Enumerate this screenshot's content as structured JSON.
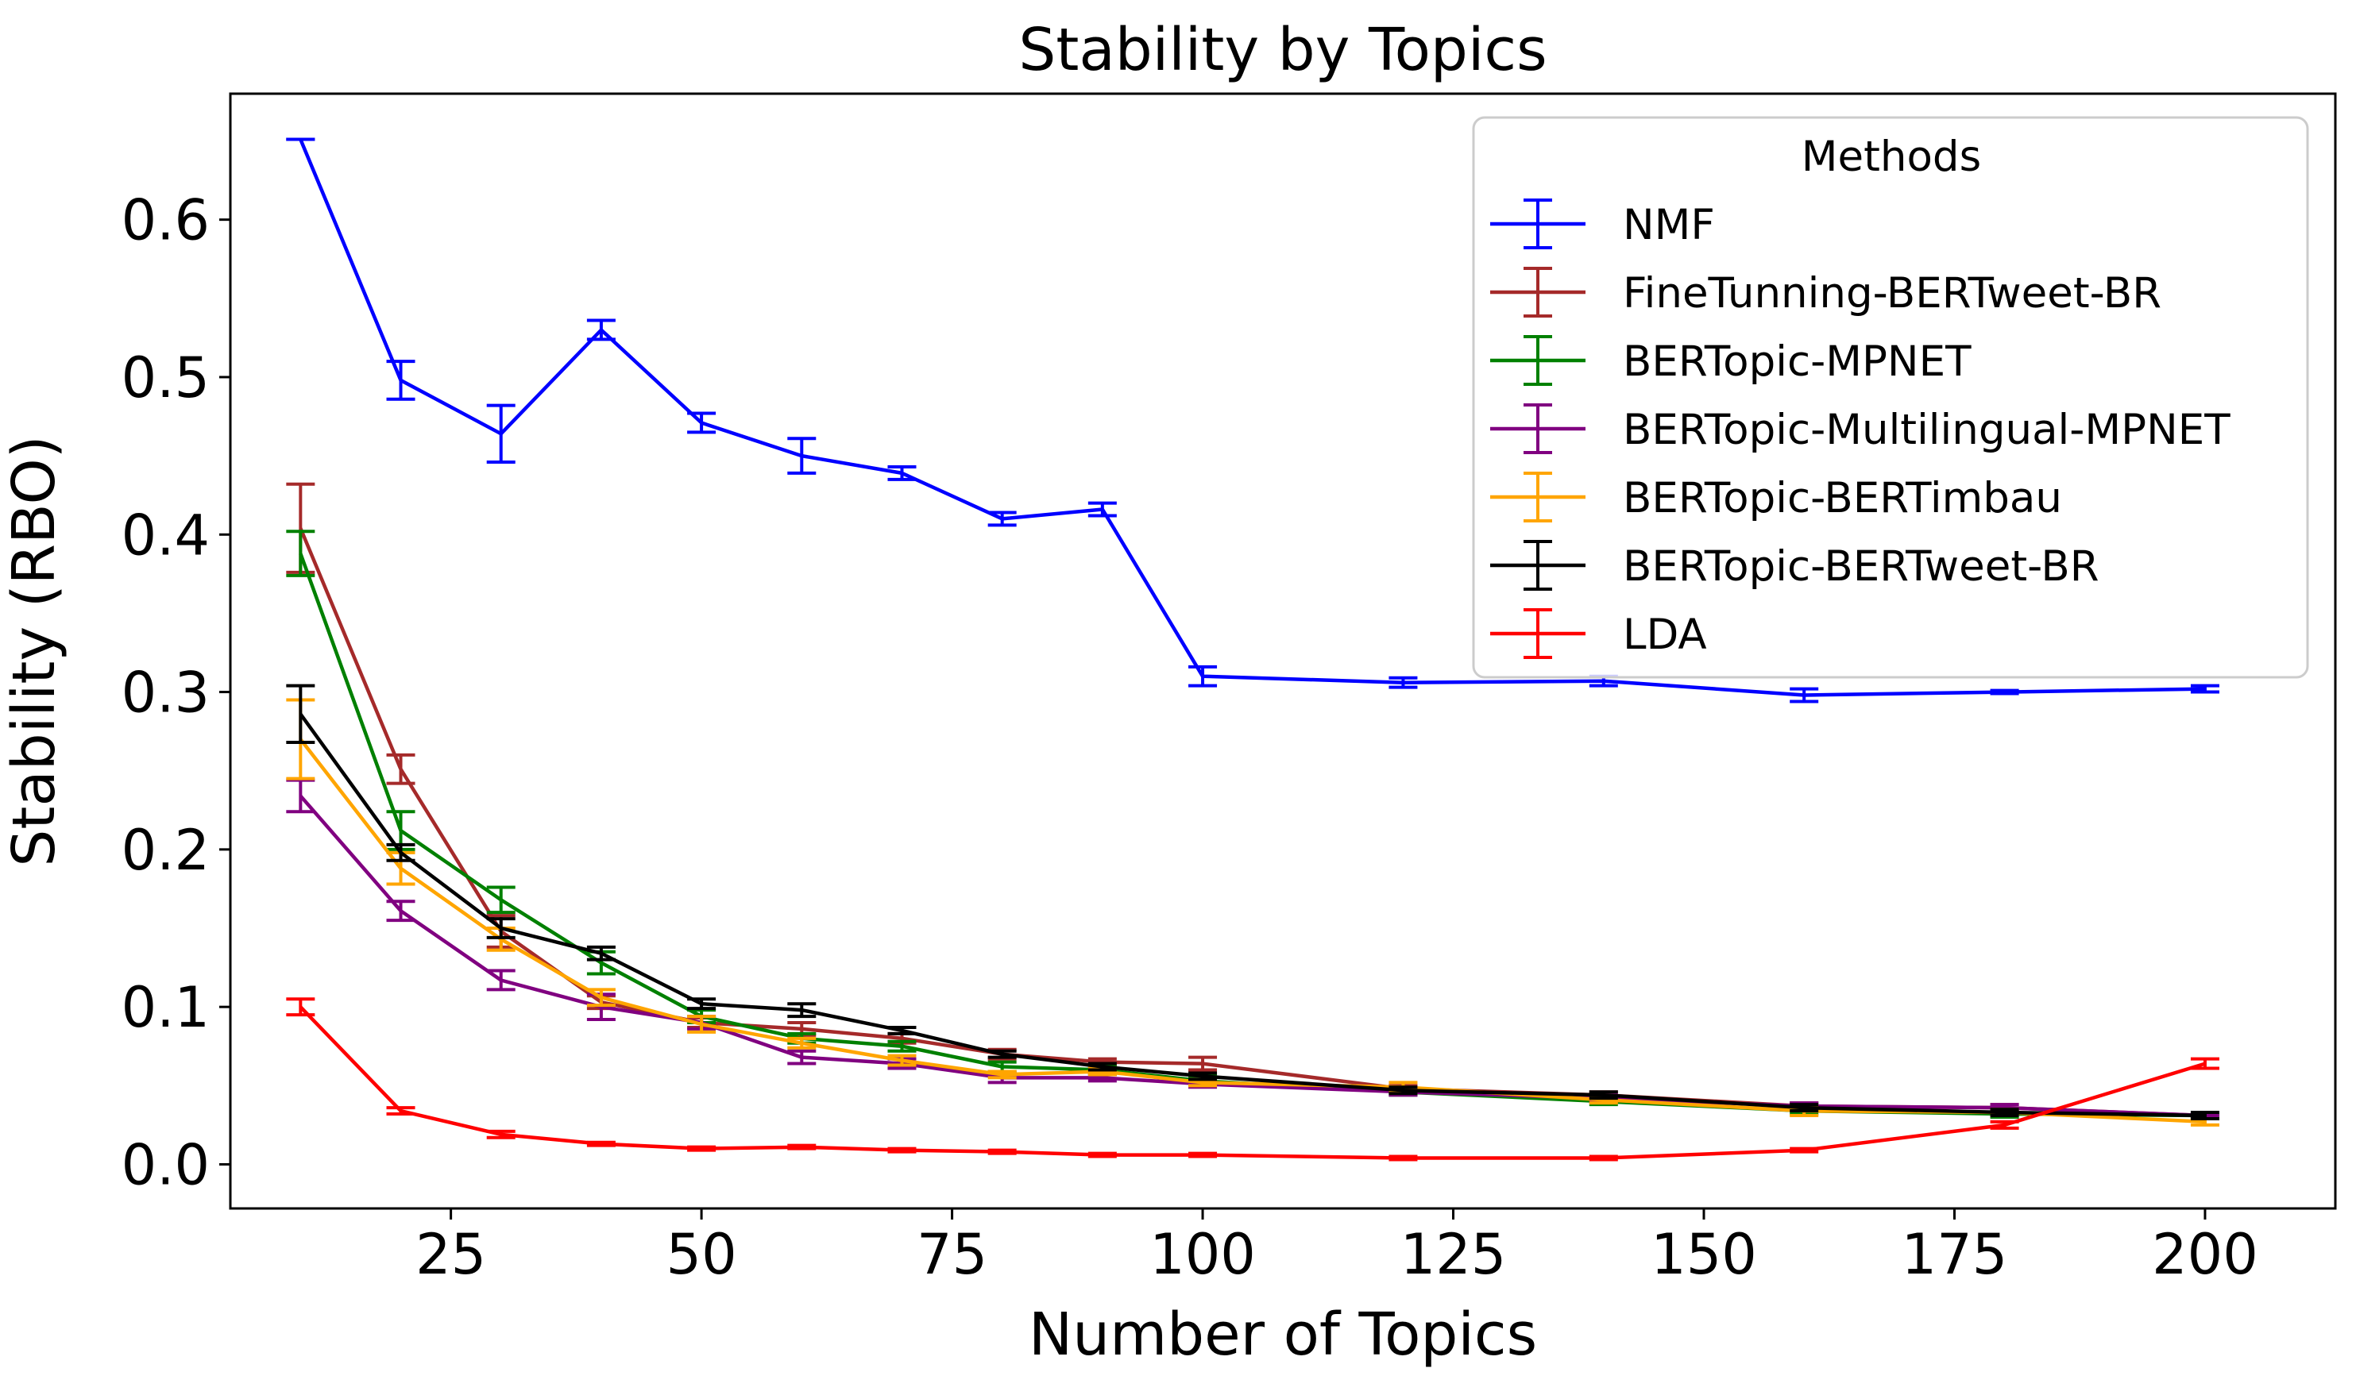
{
  "chart_data": {
    "type": "line",
    "title": "Stability by Topics",
    "xlabel": "Number of Topics",
    "ylabel": "Stability (RBO)",
    "xlim": [
      3,
      213
    ],
    "ylim": [
      -0.028,
      0.68
    ],
    "xticks": [
      25,
      50,
      75,
      100,
      125,
      150,
      175,
      200
    ],
    "yticks": [
      0.0,
      0.1,
      0.2,
      0.3,
      0.4,
      0.5,
      0.6
    ],
    "xtick_labels": [
      "25",
      "50",
      "75",
      "100",
      "125",
      "150",
      "175",
      "200"
    ],
    "ytick_labels": [
      "0.0",
      "0.1",
      "0.2",
      "0.3",
      "0.4",
      "0.5",
      "0.6"
    ],
    "grid": false,
    "legend": {
      "title": "Methods",
      "position": "top-right"
    },
    "x": [
      10,
      20,
      30,
      40,
      50,
      60,
      70,
      80,
      90,
      100,
      120,
      140,
      160,
      180,
      200
    ],
    "series": [
      {
        "name": "NMF",
        "color": "#0000ff",
        "values": [
          0.651,
          0.498,
          0.464,
          0.53,
          0.471,
          0.45,
          0.439,
          0.41,
          0.416,
          0.31,
          0.306,
          0.307,
          0.298,
          0.3,
          0.302
        ],
        "errors": [
          0.0,
          0.012,
          0.018,
          0.006,
          0.006,
          0.011,
          0.004,
          0.004,
          0.004,
          0.006,
          0.003,
          0.003,
          0.004,
          0.001,
          0.002
        ]
      },
      {
        "name": "FineTunning-BERTweet-BR",
        "color": "#a52a2a",
        "values": [
          0.404,
          0.251,
          0.148,
          0.103,
          0.09,
          0.086,
          0.08,
          0.07,
          0.065,
          0.064,
          0.048,
          0.044,
          0.037,
          0.036,
          0.031
        ],
        "errors": [
          0.028,
          0.009,
          0.01,
          0.004,
          0.003,
          0.004,
          0.003,
          0.003,
          0.002,
          0.004,
          0.002,
          0.002,
          0.002,
          0.002,
          0.001
        ]
      },
      {
        "name": "BERTopic-MPNET",
        "color": "#008000",
        "values": [
          0.388,
          0.212,
          0.168,
          0.128,
          0.094,
          0.08,
          0.075,
          0.062,
          0.06,
          0.053,
          0.046,
          0.04,
          0.034,
          0.032,
          0.031
        ],
        "errors": [
          0.014,
          0.012,
          0.008,
          0.007,
          0.004,
          0.003,
          0.003,
          0.003,
          0.002,
          0.003,
          0.002,
          0.002,
          0.002,
          0.002,
          0.001
        ]
      },
      {
        "name": "BERTopic-Multilingual-MPNET",
        "color": "#800080",
        "values": [
          0.234,
          0.161,
          0.117,
          0.1,
          0.09,
          0.068,
          0.064,
          0.055,
          0.055,
          0.051,
          0.046,
          0.042,
          0.037,
          0.036,
          0.031
        ],
        "errors": [
          0.01,
          0.006,
          0.006,
          0.008,
          0.004,
          0.004,
          0.003,
          0.003,
          0.002,
          0.002,
          0.002,
          0.002,
          0.002,
          0.002,
          0.001
        ]
      },
      {
        "name": "BERTopic-BERTimbau",
        "color": "#ffa500",
        "values": [
          0.27,
          0.188,
          0.143,
          0.106,
          0.089,
          0.077,
          0.066,
          0.057,
          0.059,
          0.052,
          0.049,
          0.041,
          0.034,
          0.033,
          0.027
        ],
        "errors": [
          0.025,
          0.01,
          0.007,
          0.005,
          0.005,
          0.003,
          0.003,
          0.002,
          0.002,
          0.002,
          0.003,
          0.002,
          0.003,
          0.002,
          0.002
        ]
      },
      {
        "name": "BERTopic-BERTweet-BR",
        "color": "#000000",
        "values": [
          0.286,
          0.198,
          0.15,
          0.134,
          0.102,
          0.098,
          0.085,
          0.07,
          0.062,
          0.056,
          0.047,
          0.044,
          0.036,
          0.033,
          0.031
        ],
        "errors": [
          0.018,
          0.005,
          0.006,
          0.004,
          0.003,
          0.004,
          0.002,
          0.002,
          0.002,
          0.002,
          0.002,
          0.002,
          0.002,
          0.002,
          0.002
        ]
      },
      {
        "name": "LDA",
        "color": "#ff0000",
        "values": [
          0.1,
          0.034,
          0.019,
          0.013,
          0.01,
          0.011,
          0.009,
          0.008,
          0.006,
          0.006,
          0.004,
          0.004,
          0.009,
          0.025,
          0.064
        ],
        "errors": [
          0.005,
          0.002,
          0.002,
          0.001,
          0.001,
          0.001,
          0.001,
          0.001,
          0.001,
          0.001,
          0.001,
          0.001,
          0.001,
          0.002,
          0.003
        ]
      }
    ]
  }
}
